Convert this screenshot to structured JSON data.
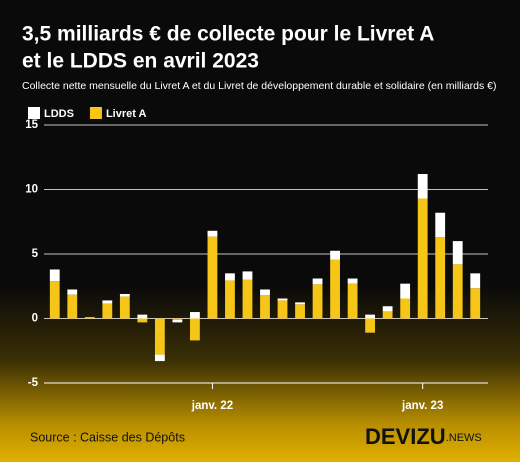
{
  "chart_data": {
    "type": "stacked_bar",
    "title": [
      "3,5 milliards € de collecte pour le Livret A",
      "et le LDDS en avril 2023"
    ],
    "subtitle": "Collecte nette mensuelle du Livret A et du Livret de développement durable et solidaire (en milliards €)",
    "source": "Source : Caisse des Dépôts",
    "brand": {
      "name": "DEVIZU",
      "suffix": ".NEWS"
    },
    "categories": [
      null,
      null,
      null,
      null,
      null,
      null,
      null,
      null,
      null,
      "janv. 22",
      null,
      null,
      null,
      null,
      null,
      null,
      null,
      null,
      null,
      null,
      null,
      "janv. 23",
      null,
      null,
      null
    ],
    "series": [
      {
        "name": "Livret A",
        "color": "#f5c518",
        "values": [
          2.9,
          1.85,
          0.05,
          1.15,
          1.7,
          -0.3,
          -2.8,
          -0.1,
          -1.7,
          6.35,
          2.95,
          3.0,
          1.8,
          1.4,
          1.1,
          2.65,
          4.55,
          2.7,
          -1.1,
          0.55,
          1.55,
          9.3,
          6.3,
          4.2,
          2.35
        ]
      },
      {
        "name": "LDDS",
        "color": "#ffffff",
        "values": [
          0.9,
          0.4,
          0.05,
          0.25,
          0.2,
          0.3,
          -0.5,
          -0.2,
          0.5,
          0.45,
          0.55,
          0.65,
          0.45,
          0.15,
          0.15,
          0.45,
          0.7,
          0.4,
          0.3,
          0.4,
          1.15,
          1.9,
          1.9,
          1.8,
          1.15
        ]
      }
    ],
    "ylim": [
      -5,
      15
    ],
    "yticks": [
      -5,
      0,
      5,
      10,
      15
    ],
    "grid": true
  }
}
